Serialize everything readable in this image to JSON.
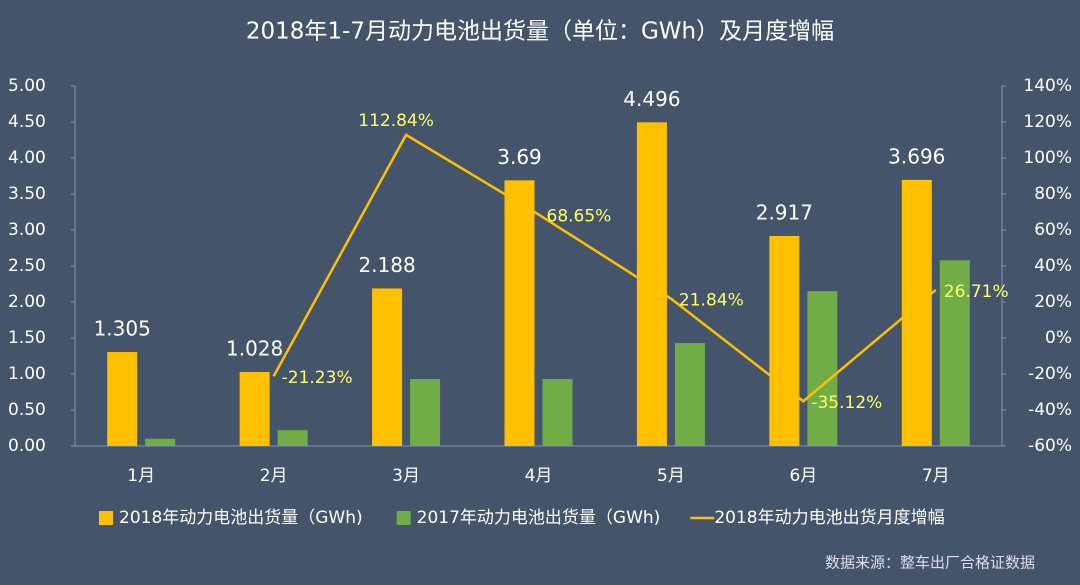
{
  "chart_data": {
    "type": "bar",
    "title": "2018年1-7月动力电池出货量（单位：GWh）及月度增幅",
    "source": "数据来源：整车出厂合格证数据",
    "categories": [
      "1月",
      "2月",
      "3月",
      "4月",
      "5月",
      "6月",
      "7月"
    ],
    "series": [
      {
        "name": "2018年动力电池出货量（GWh)",
        "type": "bar",
        "color": "#FFC000",
        "values": [
          1.305,
          1.028,
          2.188,
          3.69,
          4.496,
          2.917,
          3.696
        ]
      },
      {
        "name": "2017年动力电池出货量（GWh)",
        "type": "bar",
        "color": "#70AD47",
        "values": [
          0.1,
          0.22,
          0.93,
          0.93,
          1.43,
          2.15,
          2.58
        ]
      },
      {
        "name": "2018年动力电池出货月度增幅",
        "type": "line",
        "axis": "y2",
        "color": "#FFC000",
        "values": [
          null,
          -21.23,
          112.84,
          68.65,
          21.84,
          -35.12,
          26.71
        ],
        "value_labels": [
          null,
          "-21.23%",
          "112.84%",
          "68.65%",
          "21.84%",
          "-35.12%",
          "26.71%"
        ]
      }
    ],
    "ylim": [
      0,
      5
    ],
    "yticks": [
      {
        "value": 0,
        "label": "0.00"
      },
      {
        "value": 0.5,
        "label": "0.50"
      },
      {
        "value": 1,
        "label": "1.00"
      },
      {
        "value": 1.5,
        "label": "1.50"
      },
      {
        "value": 2,
        "label": "2.00"
      },
      {
        "value": 2.5,
        "label": "2.50"
      },
      {
        "value": 3,
        "label": "3.00"
      },
      {
        "value": 3.5,
        "label": "3.50"
      },
      {
        "value": 4,
        "label": "4.00"
      },
      {
        "value": 4.5,
        "label": "4.50"
      },
      {
        "value": 5,
        "label": "5.00"
      }
    ],
    "y2lim": [
      -60,
      140
    ],
    "y2ticks": [
      {
        "value": -60,
        "label": "-60%"
      },
      {
        "value": -40,
        "label": "-40%"
      },
      {
        "value": -20,
        "label": "-20%"
      },
      {
        "value": 0,
        "label": "0%"
      },
      {
        "value": 20,
        "label": "20%"
      },
      {
        "value": 40,
        "label": "40%"
      },
      {
        "value": 60,
        "label": "60%"
      },
      {
        "value": 80,
        "label": "80%"
      },
      {
        "value": 100,
        "label": "100%"
      },
      {
        "value": 120,
        "label": "120%"
      },
      {
        "value": 140,
        "label": "140%"
      }
    ],
    "legend": "bottom",
    "label_color": "#FFFF66"
  }
}
